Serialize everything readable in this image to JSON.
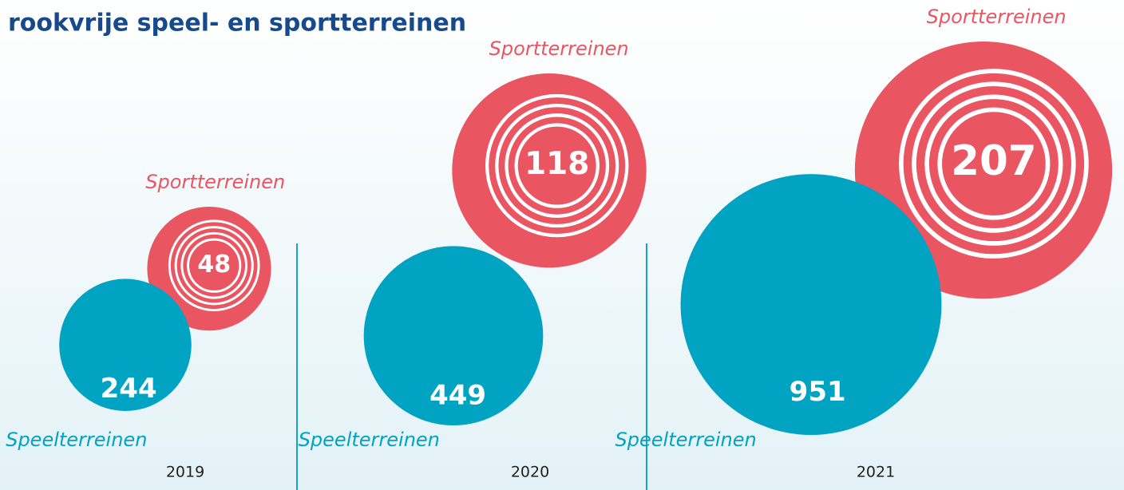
{
  "chart_data": {
    "type": "bubble",
    "title": "rookvrije speel- en sportterreinen",
    "categories": [
      "2019",
      "2020",
      "2021"
    ],
    "series": [
      {
        "name": "Speelterreinen",
        "color": "#00a3c2",
        "values": [
          244,
          449,
          951
        ]
      },
      {
        "name": "Sportterreinen",
        "color": "#ea5562",
        "values": [
          48,
          118,
          207
        ]
      }
    ]
  }
}
